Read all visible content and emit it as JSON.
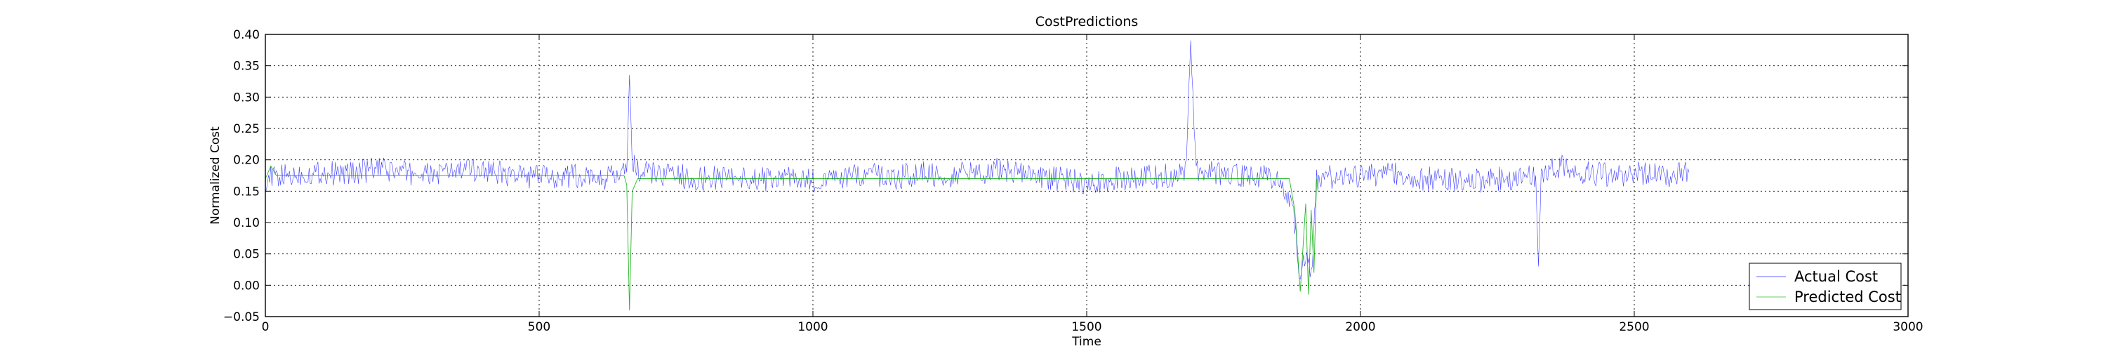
{
  "chart_data": {
    "type": "line",
    "title": "CostPredictions",
    "xlabel": "Time",
    "ylabel": "Normalized Cost",
    "xlim": [
      0,
      3000
    ],
    "ylim": [
      -0.05,
      0.4
    ],
    "x_ticks": [
      0,
      500,
      1000,
      1500,
      2000,
      2500,
      3000
    ],
    "x_tick_labels": [
      "0",
      "500",
      "1000",
      "1500",
      "2000",
      "2500",
      "3000"
    ],
    "y_ticks": [
      -0.05,
      0.0,
      0.05,
      0.1,
      0.15,
      0.2,
      0.25,
      0.3,
      0.35,
      0.4
    ],
    "y_tick_labels": [
      "−0.05",
      "0.00",
      "0.05",
      "0.10",
      "0.15",
      "0.20",
      "0.25",
      "0.30",
      "0.35",
      "0.40"
    ],
    "grid": true,
    "legend_position": "lower-right",
    "series": [
      {
        "name": "Actual Cost",
        "color": "#0000ff",
        "x": [
          0,
          50,
          100,
          150,
          200,
          250,
          300,
          350,
          400,
          450,
          500,
          550,
          600,
          640,
          660,
          665,
          670,
          680,
          700,
          750,
          800,
          850,
          900,
          950,
          1000,
          1050,
          1100,
          1150,
          1200,
          1250,
          1300,
          1350,
          1400,
          1450,
          1500,
          1550,
          1600,
          1650,
          1680,
          1690,
          1700,
          1750,
          1800,
          1850,
          1870,
          1880,
          1890,
          1900,
          1910,
          1920,
          1930,
          1950,
          2000,
          2050,
          2100,
          2150,
          2200,
          2250,
          2300,
          2320,
          2325,
          2330,
          2350,
          2370,
          2400,
          2450,
          2500,
          2550,
          2600
        ],
        "y": [
          0.17,
          0.175,
          0.18,
          0.178,
          0.185,
          0.18,
          0.175,
          0.182,
          0.185,
          0.175,
          0.172,
          0.175,
          0.17,
          0.172,
          0.18,
          0.335,
          0.2,
          0.18,
          0.178,
          0.175,
          0.17,
          0.175,
          0.168,
          0.172,
          0.165,
          0.17,
          0.175,
          0.172,
          0.178,
          0.175,
          0.18,
          0.185,
          0.175,
          0.17,
          0.165,
          0.17,
          0.172,
          0.175,
          0.178,
          0.38,
          0.18,
          0.178,
          0.175,
          0.17,
          0.14,
          0.1,
          0.01,
          0.05,
          0.02,
          0.165,
          0.175,
          0.17,
          0.175,
          0.18,
          0.17,
          0.168,
          0.165,
          0.17,
          0.172,
          0.175,
          0.03,
          0.17,
          0.185,
          0.19,
          0.18,
          0.175,
          0.178,
          0.175,
          0.18
        ]
      },
      {
        "name": "Predicted Cost",
        "color": "#00aa00",
        "x": [
          0,
          10,
          20,
          655,
          660,
          665,
          670,
          680,
          1870,
          1880,
          1890,
          1900,
          1905,
          1910,
          1915,
          1920
        ],
        "y": [
          0.17,
          0.19,
          0.175,
          0.175,
          0.16,
          -0.04,
          0.15,
          0.17,
          0.17,
          0.12,
          -0.01,
          0.13,
          -0.015,
          0.12,
          0.02,
          0.17
        ]
      }
    ]
  }
}
